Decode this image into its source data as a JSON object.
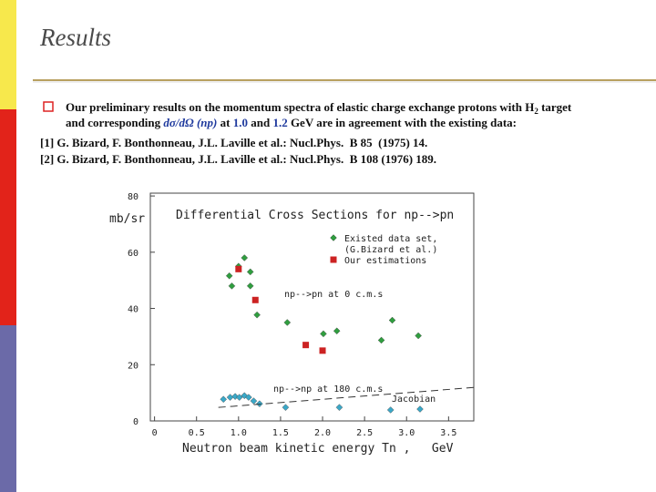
{
  "slide": {
    "title": "Results",
    "bullet": {
      "marker": "p",
      "l1": "Our preliminary results on the momentum spectra of elastic charge exchange protons with H",
      "l1_sub": "2",
      "l1_end": " target",
      "l2_a": "and corresponding ",
      "l2_b": "dσ/dΩ (np)",
      "l2_c": " at ",
      "l2_d": "1.0",
      "l2_e": " and ",
      "l2_f": "1.2",
      "l2_g": " GeV are in agreement with the existing data:"
    },
    "references": [
      "[1] G. Bizard, F. Bonthonneau, J.L. Laville et al.: Nucl.Phys.  B 85  (1975) 14.",
      "[2] G. Bizard, F. Bonthonneau, J.L. Laville et al.: Nucl.Phys.  B 108 (1976) 189."
    ]
  },
  "chart_data": {
    "type": "scatter",
    "title": "Differential Cross Sections for np-->pn",
    "x_label": "Neutron beam kinetic energy Tn ,   GeV",
    "y_label": "mb/sr",
    "xlim": [
      -0.05,
      3.8
    ],
    "ylim": [
      0,
      81
    ],
    "xticks": [
      0,
      0.5,
      {
        "value": 1,
        "label": "1.0"
      },
      1.5,
      {
        "value": 2,
        "label": "2.0"
      },
      2.5,
      {
        "value": 3,
        "label": "3.0"
      },
      3.5
    ],
    "yticks": [
      0,
      20,
      40,
      60,
      80
    ],
    "annotations": [
      "(G.Bizard et al.)",
      "np-->pn at 0 c.m.s",
      "np-->np at 180 c.m.s",
      "Jacobian"
    ],
    "series": [
      {
        "name": "Existed data set,",
        "color": "#2f9e3f",
        "marker": "diamond",
        "x": [
          0.89,
          0.92,
          1.0,
          1.07,
          1.14,
          1.14,
          1.22,
          1.58,
          2.01,
          2.17,
          2.7,
          2.83,
          3.14
        ],
        "values": [
          51.6,
          48,
          55,
          58,
          53,
          48,
          37.7,
          35,
          31,
          32,
          28.7,
          35.8,
          30.3
        ]
      },
      {
        "name": "Our estimations",
        "color": "#cc2222",
        "marker": "square",
        "x": [
          1.0,
          1.2,
          1.8,
          2.0
        ],
        "values": [
          54,
          43,
          27,
          25
        ]
      },
      {
        "color": "#3aa8c8",
        "marker": "diamond",
        "x": [
          0.82,
          0.9,
          0.96,
          1.01,
          1.07,
          1.12,
          1.18,
          1.25,
          1.56,
          2.2,
          2.81,
          3.16
        ],
        "values": [
          7.7,
          8.4,
          8.7,
          8.4,
          9,
          8.4,
          7.1,
          6.1,
          4.8,
          4.8,
          3.9,
          4.2
        ]
      },
      {
        "color": "#333333",
        "marker": "dashed-line",
        "x": [
          0.76,
          3.8
        ],
        "values": [
          4.8,
          11.9
        ]
      }
    ]
  }
}
